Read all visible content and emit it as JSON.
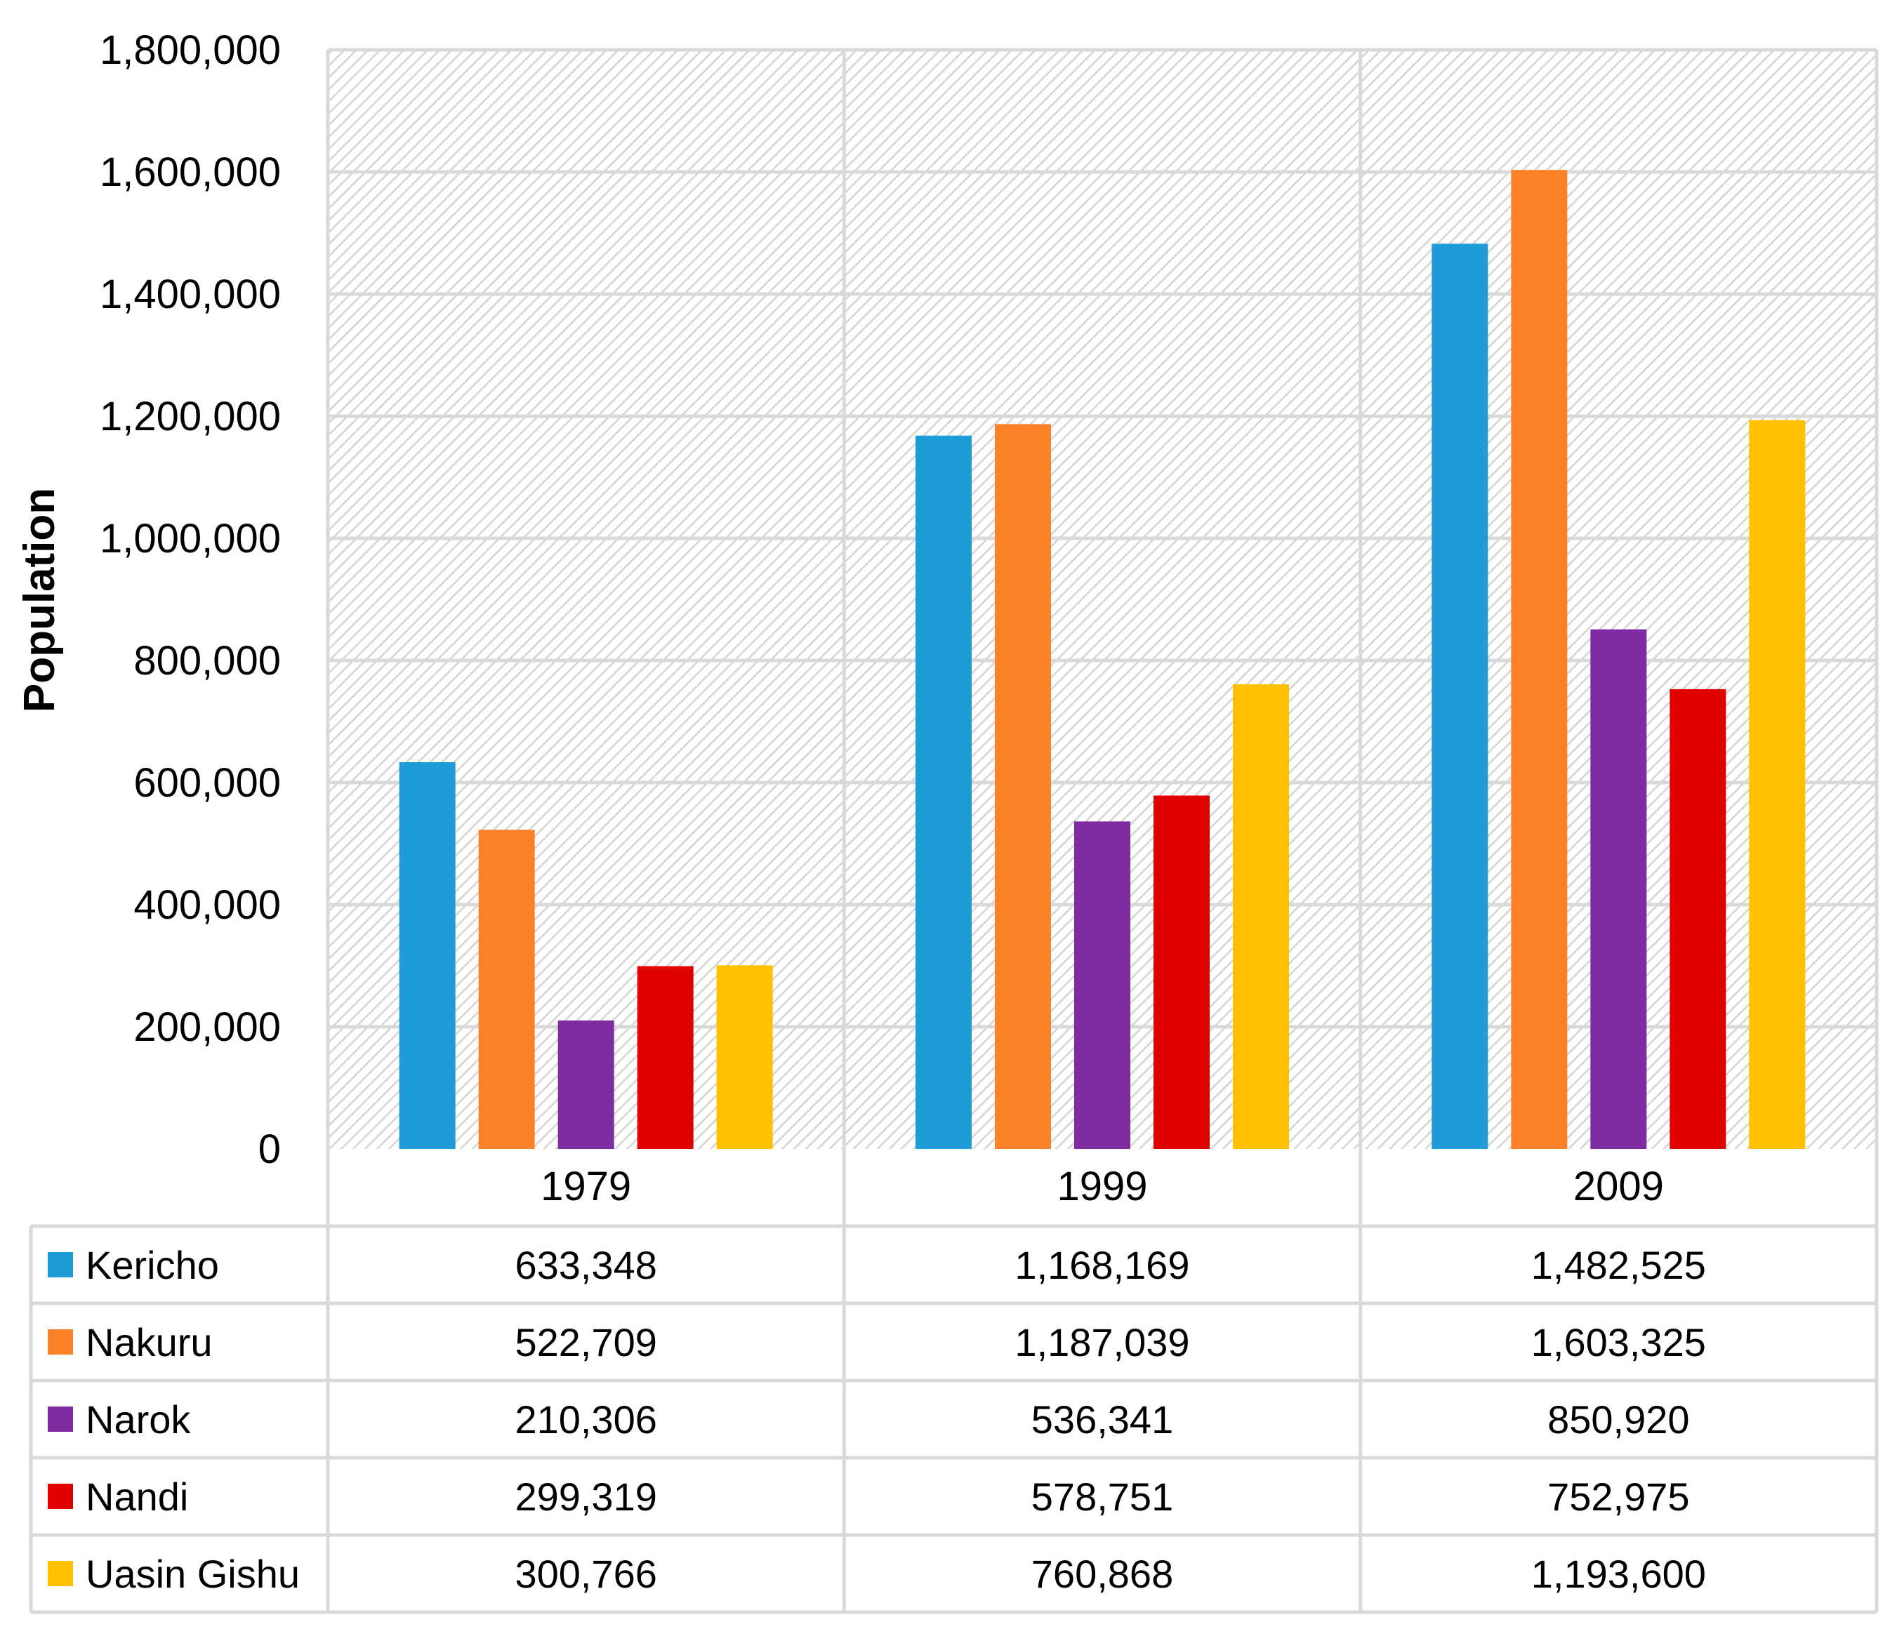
{
  "chart_data": {
    "type": "bar",
    "title": "",
    "xlabel": "",
    "ylabel": "Population",
    "ylim": [
      0,
      1800000
    ],
    "ytick_values": [
      0,
      200000,
      400000,
      600000,
      800000,
      1000000,
      1200000,
      1400000,
      1600000,
      1800000
    ],
    "ytick_labels": [
      "0",
      "200,000",
      "400,000",
      "600,000",
      "800,000",
      "1,000,000",
      "1,200,000",
      "1,400,000",
      "1,600,000",
      "1,800,000"
    ],
    "grid": true,
    "legend": "data-table-left",
    "categories": [
      "1979",
      "1999",
      "2009"
    ],
    "series": [
      {
        "name": "Kericho",
        "color": "#1f9bd8",
        "values": [
          633348,
          1168169,
          1482525
        ],
        "labels": [
          "633,348",
          "1,168,169",
          "1,482,525"
        ]
      },
      {
        "name": "Nakuru",
        "color": "#fd8128",
        "values": [
          522709,
          1187039,
          1603325
        ],
        "labels": [
          "522,709",
          "1,187,039",
          "1,603,325"
        ]
      },
      {
        "name": "Narok",
        "color": "#7f2ba1",
        "values": [
          210306,
          536341,
          850920
        ],
        "labels": [
          "210,306",
          "536,341",
          "850,920"
        ]
      },
      {
        "name": "Nandi",
        "color": "#e00000",
        "values": [
          299319,
          578751,
          752975
        ],
        "labels": [
          "299,319",
          "578,751",
          "752,975"
        ]
      },
      {
        "name": "Uasin Gishu",
        "color": "#ffc000",
        "values": [
          300766,
          760868,
          1193600
        ],
        "labels": [
          "300,766",
          "760,868",
          "1,193,600"
        ]
      }
    ]
  }
}
